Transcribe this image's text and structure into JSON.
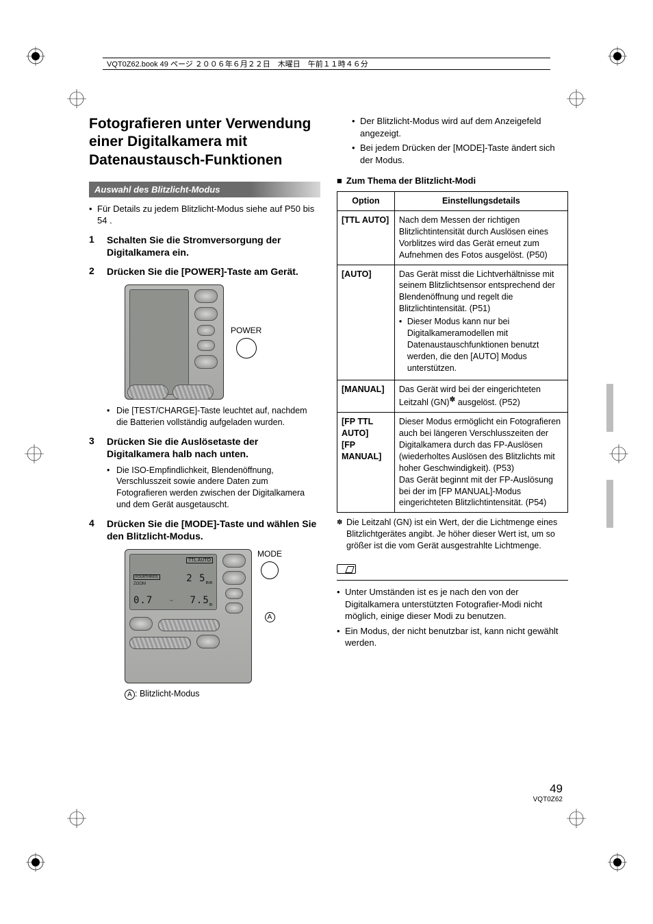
{
  "header": {
    "runner": "VQT0Z62.book  49 ページ  ２００６年６月２２日　木曜日　午前１１時４６分"
  },
  "left": {
    "title": "Fotografieren unter Verwendung einer Digitalkamera mit Datenaustausch-Funktionen",
    "section_bar": "Auswahl des Blitzlicht-Modus",
    "pre_note": "Für Details zu jedem Blitzlicht-Modus siehe auf P50 bis 54 .",
    "steps": [
      {
        "head": "Schalten Sie die Stromversorgung der Digitalkamera ein."
      },
      {
        "head": "Drücken Sie die [POWER]-Taste am Gerät.",
        "fig": "fig1",
        "fig_label": "POWER",
        "sub": [
          "Die [TEST/CHARGE]-Taste leuchtet auf, nachdem die Batterien vollständig aufgeladen wurden."
        ]
      },
      {
        "head": "Drücken Sie die Auslösetaste der Digitalkamera halb nach unten.",
        "sub": [
          "Die ISO-Empfindlichkeit, Blendenöffnung, Verschlusszeit sowie andere Daten zum Fotografieren werden zwischen der Digitalkamera und dem Gerät ausgetauscht."
        ]
      },
      {
        "head": "Drücken Sie die [MODE]-Taste und wählen Sie den Blitzlicht-Modus.",
        "fig": "fig2",
        "fig_label": "MODE",
        "caption": ": Blitzlicht-Modus"
      }
    ],
    "lcd2": {
      "line1_box": "TTL AUTO",
      "line2_left": "FOURTHIRDS",
      "line2_left2": "ZOOM",
      "line2_rightA": "2",
      "line2_rightB": "5",
      "line2_unit": "mm",
      "line3_left": "0.7",
      "line3_mid": "~",
      "line3_right": "7.5",
      "line3_unit": "m"
    }
  },
  "right": {
    "top_bullets": [
      "Der Blitzlicht-Modus wird auf dem Anzeigefeld angezeigt.",
      "Bei jedem Drücken der [MODE]-Taste ändert sich der Modus."
    ],
    "table_heading": "Zum Thema der Blitzlicht-Modi",
    "table": {
      "head_option": "Option",
      "head_detail": "Einstellungsdetails",
      "rows": [
        {
          "opt": "[TTL AUTO]",
          "detail": "Nach dem Messen der richtigen Blitzlichtintensität durch Auslösen eines Vorblitzes wird das Gerät erneut zum Aufnehmen des Fotos ausgelöst. (P50)"
        },
        {
          "opt": "[AUTO]",
          "detail": "Das Gerät misst die Lichtverhältnisse mit seinem Blitzlichtsensor entsprechend der Blendenöffnung und regelt die Blitzlichtintensität. (P51)",
          "sub": "Dieser Modus kann nur bei Digitalkameramodellen mit Datenaustauschfunktionen benutzt werden, die den [AUTO] Modus unterstützen."
        },
        {
          "opt": "[MANUAL]",
          "detail_html": "Das Gerät wird bei der eingerichteten Leitzahl (GN)<sup>✽</sup> ausgelöst. (P52)"
        },
        {
          "opt": "[FP TTL AUTO]\n[FP MANUAL]",
          "detail": "Dieser Modus ermöglicht ein Fotografieren auch bei längeren Verschlusszeiten der Digitalkamera durch das FP-Auslösen (wiederholtes Auslösen des Blitzlichts mit hoher Geschwindigkeit). (P53)\nDas Gerät beginnt mit der FP-Auslösung bei der im [FP MANUAL]-Modus eingerichteten Blitzlichtintensität. (P54)"
        }
      ]
    },
    "footnote": "Die Leitzahl (GN) ist ein Wert, der die Lichtmenge eines Blitzlichtgerätes angibt. Je höher dieser Wert ist, um so größer ist die vom Gerät ausgestrahlte Lichtmenge.",
    "notes": [
      "Unter Umständen ist es je nach den von der Digitalkamera unterstützten Fotografier-Modi nicht möglich, einige dieser Modi zu benutzen.",
      "Ein Modus, der nicht benutzbar ist, kann nicht gewählt werden."
    ]
  },
  "footer": {
    "page": "49",
    "doc_id": "VQT0Z62"
  }
}
